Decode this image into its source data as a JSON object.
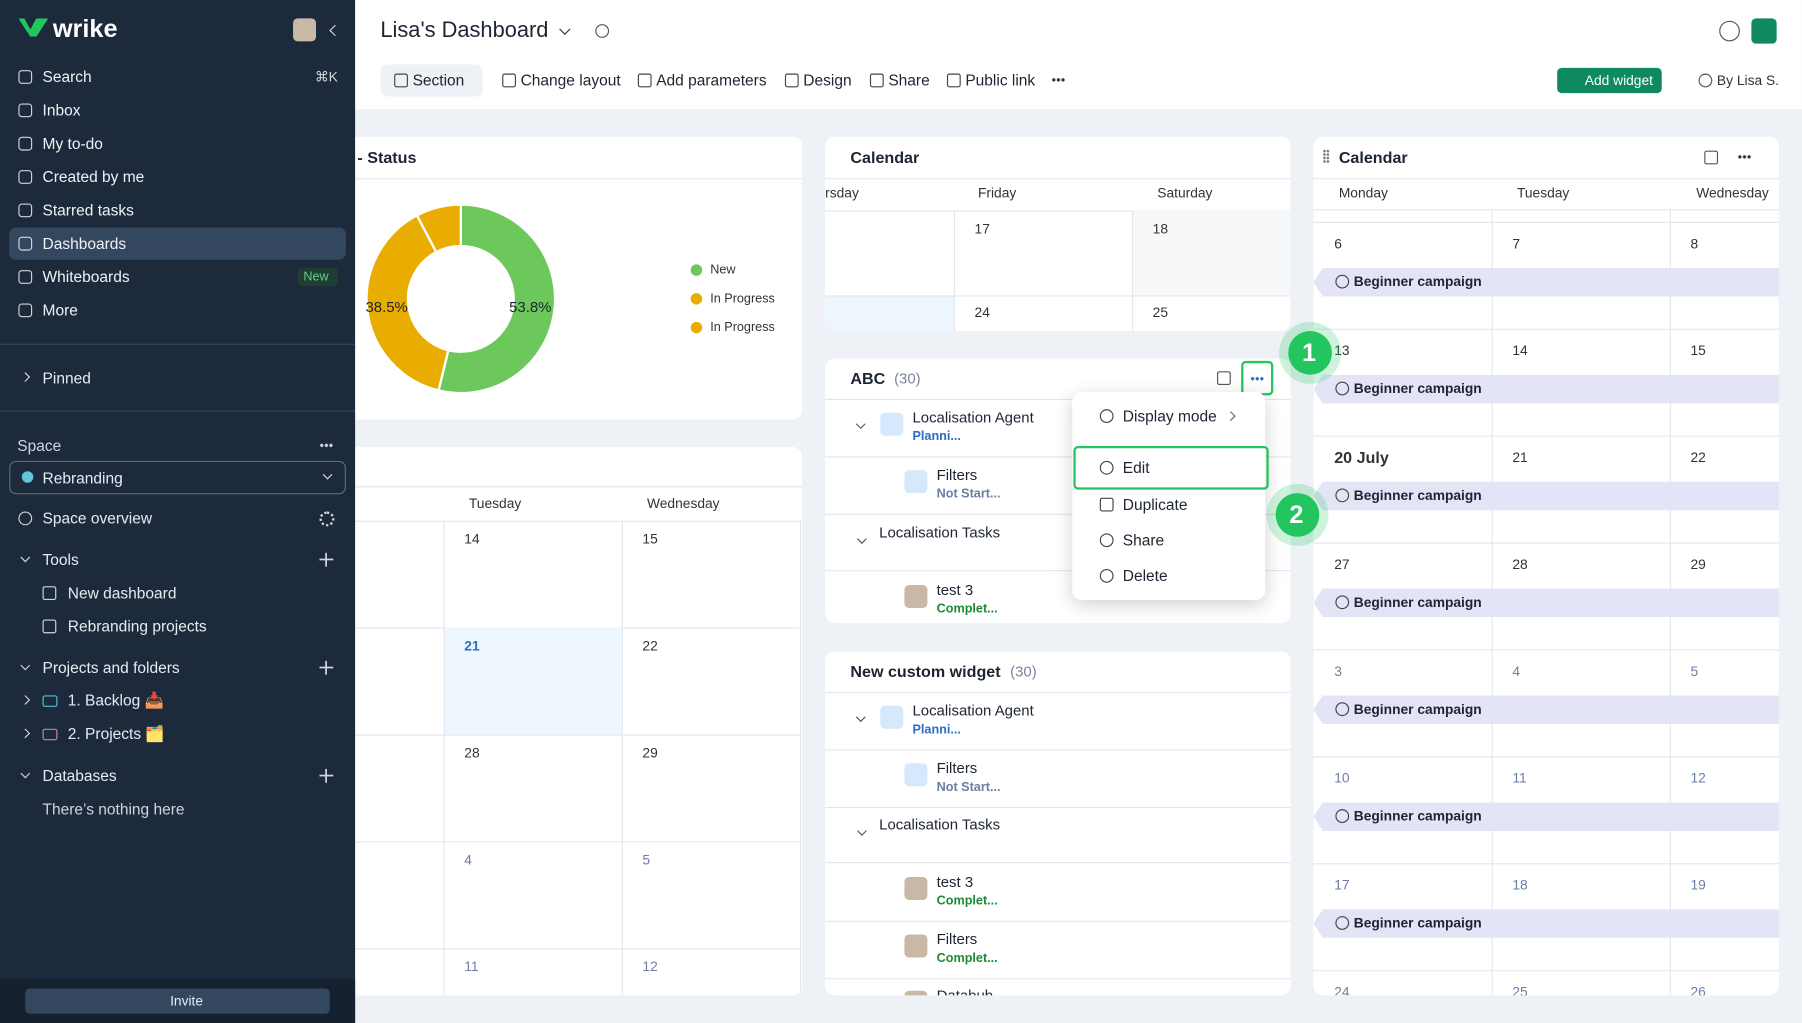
{
  "sidebar": {
    "logo": "wrike",
    "nav": [
      {
        "label": "Search",
        "shortcut": "⌘K"
      },
      {
        "label": "Inbox"
      },
      {
        "label": "My to-do"
      },
      {
        "label": "Created by me"
      },
      {
        "label": "Starred tasks"
      },
      {
        "label": "Dashboards",
        "active": true
      },
      {
        "label": "Whiteboards",
        "badge": "New"
      },
      {
        "label": "More"
      }
    ],
    "pinned": "Pinned",
    "space": {
      "label": "Space",
      "selected": "Rebranding"
    },
    "space_overview": "Space overview",
    "tools": {
      "label": "Tools",
      "items": [
        "New dashboard",
        "Rebranding projects"
      ]
    },
    "projects": {
      "label": "Projects and folders",
      "items": [
        "1. Backlog 📥",
        "2. Projects 🗂️"
      ]
    },
    "databases": {
      "label": "Databases",
      "empty": "There’s nothing here"
    },
    "invite": "Invite"
  },
  "header": {
    "title": "Lisa's Dashboard",
    "toolbar": [
      "Section",
      "Change layout",
      "Add parameters",
      "Design",
      "Share",
      "Public link"
    ],
    "add_widget": "Add widget",
    "owner": "By Lisa S."
  },
  "status_widget": {
    "title": "- Status",
    "chart_data": {
      "type": "pie",
      "values": [
        53.8,
        38.5,
        7.7
      ],
      "value_labels": [
        "53.8%",
        "38.5%",
        null
      ],
      "colors": [
        "#6cc85a",
        "#e8ad00",
        "#e8ad00"
      ],
      "legend": [
        "New",
        "In Progress",
        "In Progress"
      ]
    }
  },
  "left_calendar": {
    "headers": [
      "Tuesday",
      "Wednesday"
    ],
    "weeks": [
      [
        "14",
        "15"
      ],
      [
        "21",
        "22"
      ],
      [
        "28",
        "29"
      ],
      [
        "4",
        "5"
      ],
      [
        "11",
        "12"
      ]
    ]
  },
  "mid_calendar": {
    "title": "Calendar",
    "headers": [
      "rsday",
      "Friday",
      "Saturday"
    ],
    "weeks": [
      [
        "17",
        "18"
      ],
      [
        "24",
        "25"
      ]
    ]
  },
  "abc_widget": {
    "title": "ABC",
    "count": "(30)",
    "rows": [
      {
        "name": "Localisation Agent",
        "status": "Planni...",
        "kind": "agent"
      },
      {
        "name": "Filters",
        "status": "Not Start...",
        "kind": "filter"
      },
      {
        "name": "Localisation Tasks",
        "kind": "group"
      },
      {
        "name": "test 3",
        "status": "Complet...",
        "kind": "task"
      }
    ]
  },
  "menu": {
    "items": [
      "Display mode",
      "Edit",
      "Duplicate",
      "Share",
      "Delete"
    ]
  },
  "callouts": [
    "1",
    "2"
  ],
  "custom_widget": {
    "title": "New custom widget",
    "count": "(30)",
    "rows": [
      {
        "name": "Localisation Agent",
        "status": "Planni...",
        "kind": "agent"
      },
      {
        "name": "Filters",
        "status": "Not Start...",
        "kind": "filter"
      },
      {
        "name": "Localisation Tasks",
        "kind": "group"
      },
      {
        "name": "test 3",
        "status": "Complet...",
        "kind": "task"
      },
      {
        "name": "Filters",
        "status": "Complet...",
        "kind": "task"
      },
      {
        "name": "Databub",
        "kind": "task"
      }
    ]
  },
  "right_calendar": {
    "title": "Calendar",
    "headers": [
      "Monday",
      "Tuesday",
      "Wednesday"
    ],
    "weeks": [
      {
        "days": [
          "6",
          "7",
          "8"
        ],
        "event": "Beginner campaign"
      },
      {
        "days": [
          "13",
          "14",
          "15"
        ],
        "event": "Beginner campaign"
      },
      {
        "days": [
          "20 July",
          "21",
          "22"
        ],
        "event": "Beginner campaign"
      },
      {
        "days": [
          "27",
          "28",
          "29"
        ],
        "event": "Beginner campaign"
      },
      {
        "days": [
          "3",
          "4",
          "5"
        ],
        "event": "Beginner campaign",
        "muted": true
      },
      {
        "days": [
          "10",
          "11",
          "12"
        ],
        "event": "Beginner campaign",
        "muted": true
      },
      {
        "days": [
          "17",
          "18",
          "19"
        ],
        "event": "Beginner campaign",
        "muted": true
      },
      {
        "days": [
          "24",
          "25",
          "26"
        ],
        "muted": true
      }
    ]
  }
}
